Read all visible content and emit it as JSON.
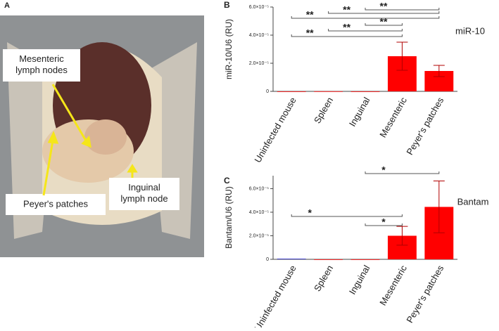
{
  "photo": {
    "panel": "A",
    "annotations": [
      "Mesenteric\nlymph nodes",
      "Peyer's patches",
      "Inguinal\nlymph node"
    ]
  },
  "chart_data": [
    {
      "type": "bar",
      "panel": "B",
      "series_label": "miR-10",
      "ylabel": "miR-10/U6 (RU)",
      "categories": [
        "Uninfected mouse",
        "Spleen",
        "Inguinal",
        "Mesenteric",
        "Peyer's patches"
      ],
      "values": [
        0,
        5e-08,
        0,
        2.5e-05,
        1.45e-05
      ],
      "errors": [
        0,
        0,
        0,
        1e-05,
        4e-06
      ],
      "colors": [
        "#ff0000",
        "#ff0000",
        "#ff0000",
        "#ff0000",
        "#ff0000"
      ],
      "error_color": "#b00000",
      "ylim": [
        0,
        6e-05
      ],
      "yticks": [
        0,
        {
          "value": 2e-05,
          "label": "2.0×10⁻⁵"
        },
        {
          "value": 4e-05,
          "label": "4.0×10⁻⁵"
        },
        {
          "value": 6e-05,
          "label": "6.0×10⁻⁵"
        }
      ],
      "significance": [
        {
          "from": 2,
          "to": 4,
          "label": "**"
        },
        {
          "from": 1,
          "to": 4,
          "label": "**"
        },
        {
          "from": 0,
          "to": 4,
          "label": "**"
        },
        {
          "from": 2,
          "to": 3,
          "label": "**"
        },
        {
          "from": 1,
          "to": 3,
          "label": "**"
        },
        {
          "from": 0,
          "to": 3,
          "label": "**"
        }
      ]
    },
    {
      "type": "bar",
      "panel": "C",
      "series_label": "Bantam",
      "ylabel": "Bantam/U6 (RU)",
      "categories": [
        "Uninfected mouse",
        "Spleen",
        "Inguinal",
        "Mesenteric",
        "Peyer's patches"
      ],
      "values": [
        5e-07,
        0,
        0,
        2e-05,
        4.45e-05
      ],
      "errors": [
        0,
        0,
        0,
        8e-06,
        2.2e-05
      ],
      "colors": [
        "#2020c0",
        "#ff0000",
        "#ff0000",
        "#ff0000",
        "#ff0000"
      ],
      "error_color": "#b00000",
      "ylim": [
        0,
        7.1e-05
      ],
      "yticks": [
        0,
        {
          "value": 2e-05,
          "label": "2.0×10⁻⁵"
        },
        {
          "value": 4e-05,
          "label": "4.0×10⁻⁵"
        },
        {
          "value": 6e-05,
          "label": "6.0×10⁻⁵"
        }
      ],
      "significance": [
        {
          "from": 2,
          "to": 4,
          "label": "*"
        },
        {
          "from": 0,
          "to": 3,
          "label": "*"
        },
        {
          "from": 2,
          "to": 3,
          "label": "*"
        }
      ]
    }
  ]
}
